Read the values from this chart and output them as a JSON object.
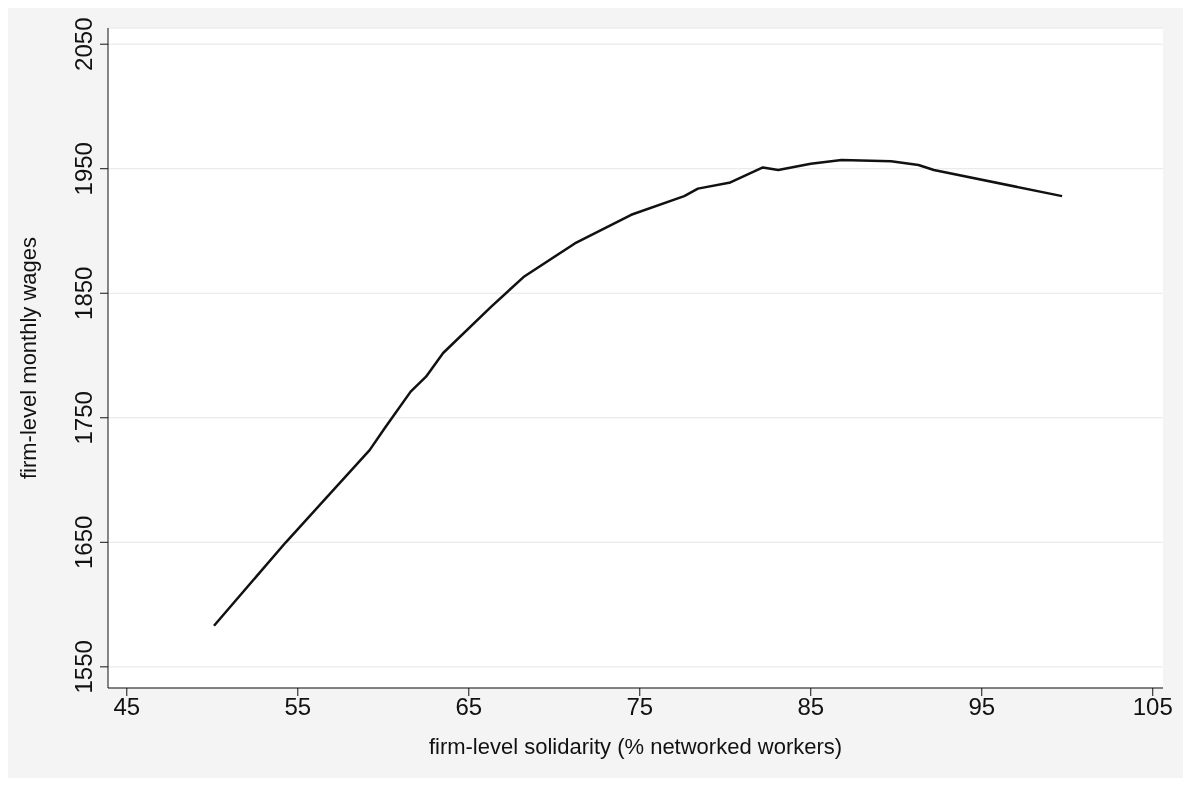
{
  "chart_data": {
    "type": "line",
    "xlabel": "firm-level solidarity (% networked workers)",
    "ylabel": "firm-level monthly wages",
    "xlim": [
      43.9,
      105.6
    ],
    "xticks": [
      45,
      55,
      65,
      75,
      85,
      95,
      105
    ],
    "ylim": [
      1533,
      2063
    ],
    "yticks": [
      1550,
      1650,
      1750,
      1850,
      1950,
      2050
    ],
    "grid": "y",
    "marker": "none",
    "line_style": "solid",
    "series": [
      {
        "color": "#111111",
        "x": [
          50.1,
          54.3,
          59.2,
          60.1,
          61.6,
          62.5,
          63.5,
          66.3,
          68.2,
          71.2,
          74.5,
          77.6,
          78.4,
          80.3,
          82.2,
          83.1,
          85.0,
          86.8,
          89.7,
          91.3,
          92.2,
          99.7
        ],
        "values": [
          1583,
          1650,
          1724,
          1742,
          1771,
          1783,
          1802,
          1839,
          1863,
          1890,
          1913,
          1928,
          1934,
          1939,
          1951,
          1949,
          1954,
          1957,
          1956,
          1953,
          1949,
          1928
        ]
      }
    ]
  }
}
